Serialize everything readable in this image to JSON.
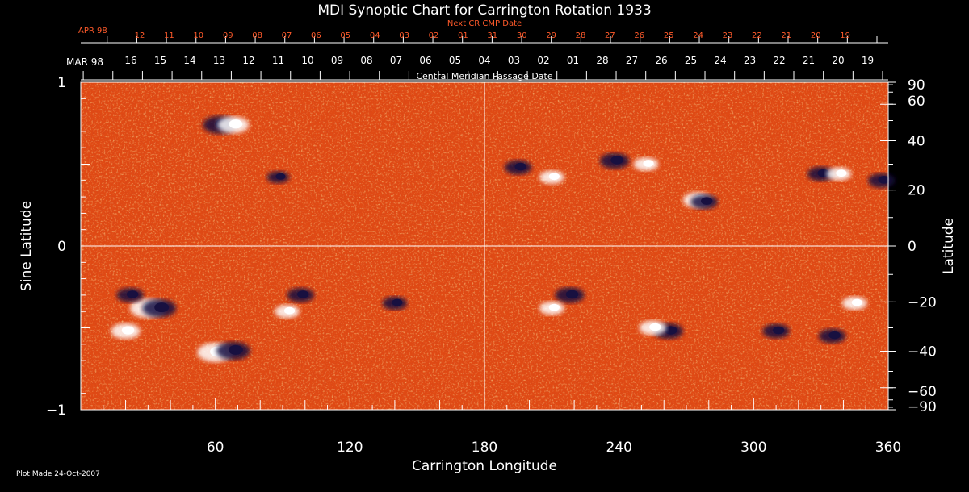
{
  "colors": {
    "background": "#000000",
    "text": "#ffffff",
    "red_text": "#ff5a2a",
    "field_base": "#e04a14",
    "positive": "#ffffff",
    "negative": "#181040"
  },
  "chart_data": {
    "type": "heatmap",
    "title": "MDI Synoptic Chart for Carrington Rotation 1933",
    "xlabel": "Carrington Longitude",
    "ylabel_left": "Sine Latitude",
    "ylabel_right": "Latitude",
    "xlim": [
      0,
      360
    ],
    "ylim": [
      -1,
      1
    ],
    "x_ticks": [
      "60",
      "120",
      "180",
      "240",
      "300",
      "360"
    ],
    "y_ticks_left": [
      {
        "value": 1,
        "label": "1"
      },
      {
        "value": 0,
        "label": "0"
      },
      {
        "value": -1,
        "label": "−1"
      }
    ],
    "y_ticks_right": [
      {
        "deg": 90,
        "label": "90"
      },
      {
        "deg": 60,
        "label": "60"
      },
      {
        "deg": 40,
        "label": "40"
      },
      {
        "deg": 20,
        "label": "20"
      },
      {
        "deg": 0,
        "label": "0"
      },
      {
        "deg": -20,
        "label": "−20"
      },
      {
        "deg": -40,
        "label": "−40"
      },
      {
        "deg": -60,
        "label": "−60"
      },
      {
        "deg": -90,
        "label": "−90"
      }
    ],
    "grid_lines": {
      "longitude": 180,
      "sine_latitude": 0
    },
    "cmp_axis": {
      "label": "Central Meridian Passage Date",
      "month_label": "MAR 98",
      "dates": [
        "16",
        "15",
        "14",
        "13",
        "12",
        "11",
        "10",
        "09",
        "08",
        "07",
        "06",
        "05",
        "04",
        "03",
        "02",
        "01",
        "28",
        "27",
        "26",
        "25",
        "24",
        "23",
        "22",
        "21",
        "20",
        "19"
      ]
    },
    "next_cmp_axis": {
      "label": "Next CR CMP Date",
      "month_label": "APR 98",
      "dates": [
        "12",
        "11",
        "10",
        "09",
        "08",
        "07",
        "06",
        "05",
        "04",
        "03",
        "02",
        "01",
        "31",
        "30",
        "29",
        "28",
        "27",
        "26",
        "25",
        "24",
        "23",
        "22",
        "21",
        "20",
        "19"
      ]
    },
    "active_regions": [
      {
        "lon": 60,
        "sinlat": -0.65,
        "polarity": "positive",
        "strength": 1.0
      },
      {
        "lon": 68,
        "sinlat": -0.64,
        "polarity": "negative",
        "strength": 0.9
      },
      {
        "lon": 30,
        "sinlat": -0.38,
        "polarity": "positive",
        "strength": 1.0
      },
      {
        "lon": 35,
        "sinlat": -0.38,
        "polarity": "negative",
        "strength": 0.9
      },
      {
        "lon": 20,
        "sinlat": -0.52,
        "polarity": "positive",
        "strength": 0.7
      },
      {
        "lon": 22,
        "sinlat": -0.3,
        "polarity": "negative",
        "strength": 0.6
      },
      {
        "lon": 98,
        "sinlat": -0.3,
        "polarity": "negative",
        "strength": 0.6
      },
      {
        "lon": 92,
        "sinlat": -0.4,
        "polarity": "positive",
        "strength": 0.5
      },
      {
        "lon": 140,
        "sinlat": -0.35,
        "polarity": "negative",
        "strength": 0.5
      },
      {
        "lon": 62,
        "sinlat": 0.74,
        "polarity": "negative",
        "strength": 0.9
      },
      {
        "lon": 68,
        "sinlat": 0.74,
        "polarity": "positive",
        "strength": 0.8
      },
      {
        "lon": 88,
        "sinlat": 0.42,
        "polarity": "negative",
        "strength": 0.4
      },
      {
        "lon": 195,
        "sinlat": 0.48,
        "polarity": "negative",
        "strength": 0.6
      },
      {
        "lon": 210,
        "sinlat": 0.42,
        "polarity": "positive",
        "strength": 0.5
      },
      {
        "lon": 238,
        "sinlat": 0.52,
        "polarity": "negative",
        "strength": 0.7
      },
      {
        "lon": 252,
        "sinlat": 0.5,
        "polarity": "positive",
        "strength": 0.5
      },
      {
        "lon": 275,
        "sinlat": 0.28,
        "polarity": "positive",
        "strength": 0.7
      },
      {
        "lon": 278,
        "sinlat": 0.27,
        "polarity": "negative",
        "strength": 0.6
      },
      {
        "lon": 330,
        "sinlat": 0.44,
        "polarity": "negative",
        "strength": 0.6
      },
      {
        "lon": 338,
        "sinlat": 0.44,
        "polarity": "positive",
        "strength": 0.5
      },
      {
        "lon": 357,
        "sinlat": 0.4,
        "polarity": "negative",
        "strength": 0.6
      },
      {
        "lon": 218,
        "sinlat": -0.3,
        "polarity": "negative",
        "strength": 0.7
      },
      {
        "lon": 210,
        "sinlat": -0.38,
        "polarity": "positive",
        "strength": 0.5
      },
      {
        "lon": 262,
        "sinlat": -0.52,
        "polarity": "negative",
        "strength": 0.7
      },
      {
        "lon": 255,
        "sinlat": -0.5,
        "polarity": "positive",
        "strength": 0.6
      },
      {
        "lon": 310,
        "sinlat": -0.52,
        "polarity": "negative",
        "strength": 0.6
      },
      {
        "lon": 335,
        "sinlat": -0.55,
        "polarity": "negative",
        "strength": 0.6
      },
      {
        "lon": 345,
        "sinlat": -0.35,
        "polarity": "positive",
        "strength": 0.5
      }
    ]
  },
  "footer": {
    "plot_made": "Plot Made 24-Oct-2007"
  }
}
